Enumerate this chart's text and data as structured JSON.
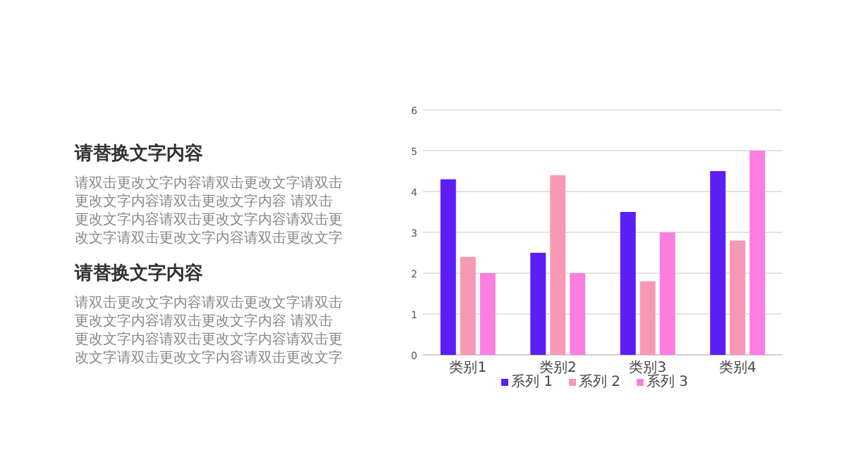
{
  "chart_data": [
    {
      "type": "other",
      "title": "请替换文字内容",
      "annotations": [
        "请双击更改文字内容请双击更改文字请双击更改文字内容请双击更改文字内容 请双击更改文字内容请双击更改文字内容请双击更改文字请双击更改文字内容请双击更改文字"
      ]
    },
    {
      "type": "other",
      "title": "请替换文字内容",
      "annotations": [
        "请双击更改文字内容请双击更改文字请双击更改文字内容请双击更改文字内容 请双击更改文字内容请双击更改文字内容请双击更改文字请双击更改文字内容请双击更改文字"
      ]
    },
    {
      "type": "bar",
      "categories": [
        "类别1",
        "类别2",
        "类别3",
        "类别4"
      ],
      "series": [
        {
          "name": "系列 1",
          "color": "#5b1ff5",
          "values": [
            4.3,
            2.5,
            3.5,
            4.5
          ]
        },
        {
          "name": "系列 2",
          "color": "#f799b5",
          "values": [
            2.4,
            4.4,
            1.8,
            2.8
          ]
        },
        {
          "name": "系列 3",
          "color": "#fb7ee0",
          "values": [
            2,
            2,
            3,
            5
          ]
        }
      ],
      "ylim": [
        0,
        6
      ],
      "yticks": [
        0,
        1,
        2,
        3,
        4,
        5,
        6
      ],
      "grid": "y",
      "legend": "bottom"
    }
  ]
}
